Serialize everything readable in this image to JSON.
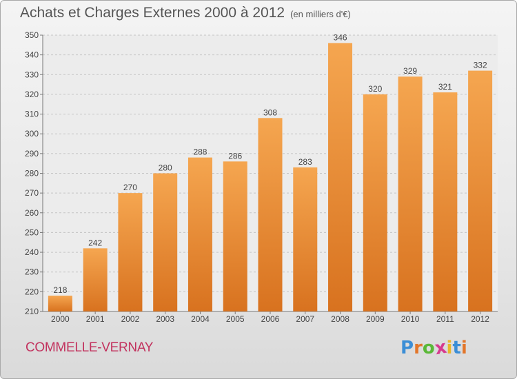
{
  "header": {
    "title": "Achats et Charges Externes 2000 à 2012",
    "unit": "(en milliers d'€)"
  },
  "footer": {
    "commune": "COMMELLE-VERNAY",
    "logo_letters": [
      "P",
      "r",
      "o",
      "x",
      "i",
      "t",
      "i"
    ],
    "logo_colors": [
      "#3b8ed6",
      "#e2762a",
      "#5ab837",
      "#d63b8e",
      "#e8b72b",
      "#3b8ed6",
      "#e2762a"
    ]
  },
  "chart_data": {
    "type": "bar",
    "title": "Achats et Charges Externes 2000 à 2012",
    "subtitle": "(en milliers d'€)",
    "categories": [
      "2000",
      "2001",
      "2002",
      "2003",
      "2004",
      "2005",
      "2006",
      "2007",
      "2008",
      "2009",
      "2010",
      "2011",
      "2012"
    ],
    "values": [
      218,
      242,
      270,
      280,
      288,
      286,
      308,
      283,
      346,
      320,
      329,
      321,
      332
    ],
    "ylim": [
      210,
      350
    ],
    "yticks": [
      210,
      220,
      230,
      240,
      250,
      260,
      270,
      280,
      290,
      300,
      310,
      320,
      330,
      340,
      350
    ],
    "grid": true,
    "bar_color_top": "#f5a650",
    "bar_color_bottom": "#d8721f"
  }
}
